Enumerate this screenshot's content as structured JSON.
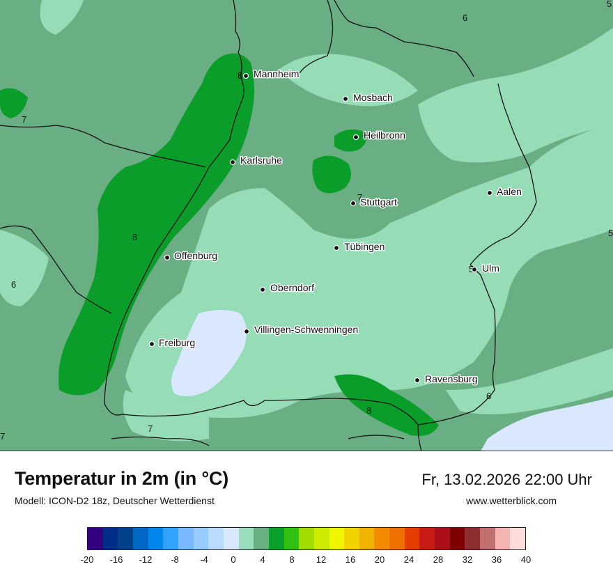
{
  "title": "Temperatur in 2m (in °C)",
  "model_line": "Modell: ICON-D2 18z, Deutscher Wetterdienst",
  "datetime": "Fr, 13.02.2026 22:00 Uhr",
  "website": "www.wetterblick.com",
  "colors": {
    "t2": "#cde0ff",
    "t4": "#95dcb7",
    "t6": "#6aaf84",
    "t8": "#0a9d2a",
    "light_bg": "#d9e7ff"
  },
  "cities": [
    {
      "name": "Mannheim"
    },
    {
      "name": "Mosbach"
    },
    {
      "name": "Heilbronn"
    },
    {
      "name": "Karlsruhe"
    },
    {
      "name": "Stuttgart"
    },
    {
      "name": "Aalen"
    },
    {
      "name": "Tübingen"
    },
    {
      "name": "Offenburg"
    },
    {
      "name": "Oberndorf"
    },
    {
      "name": "Ulm"
    },
    {
      "name": "Villingen-Schwenningen"
    },
    {
      "name": "Freiburg"
    },
    {
      "name": "Ravensburg"
    }
  ],
  "iso_labels": [
    "6",
    "5",
    "8",
    "7",
    "7",
    "8",
    "6",
    "5",
    "5",
    "8",
    "6",
    "7",
    "7"
  ],
  "legend": {
    "colors": [
      "#330080",
      "#002d87",
      "#00418a",
      "#0068c6",
      "#0087ee",
      "#2fa3ff",
      "#7ab9ff",
      "#98ccff",
      "#bcdcff",
      "#d9e7ff",
      "#9addbb",
      "#6aaf84",
      "#09a02c",
      "#30c00f",
      "#a3dc00",
      "#cdeb00",
      "#f0f500",
      "#f0d300",
      "#f0b400",
      "#f28b00",
      "#f07000",
      "#e83d00",
      "#c81b16",
      "#aa0f1a",
      "#7f0000",
      "#8c2f2f",
      "#c0716f",
      "#f6b4b0",
      "#ffdcdc"
    ],
    "ticks": [
      "-20",
      "-16",
      "-12",
      "-8",
      "-4",
      "0",
      "4",
      "8",
      "12",
      "16",
      "20",
      "24",
      "28",
      "32",
      "36",
      "40"
    ]
  }
}
